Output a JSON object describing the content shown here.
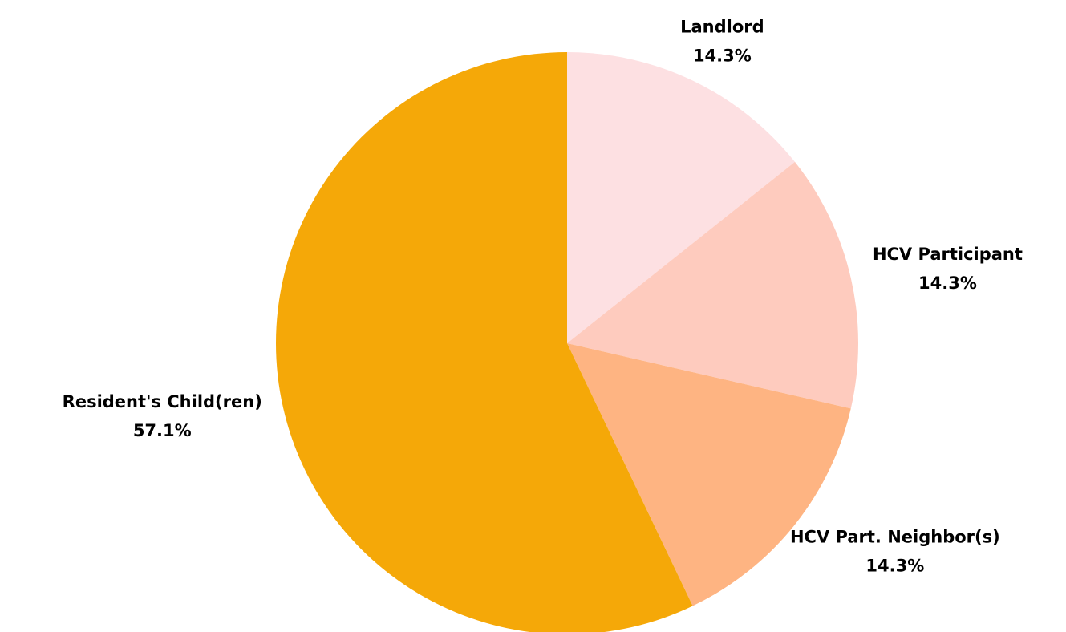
{
  "chart_data": {
    "type": "pie",
    "categories": [
      "Landlord",
      "HCV Participant",
      "HCV Part. Neighbor(s)",
      "Resident's Child(ren)"
    ],
    "values": [
      14.3,
      14.3,
      14.3,
      57.1
    ],
    "value_labels": [
      "14.3%",
      "14.3%",
      "14.3%",
      "57.1%"
    ],
    "colors": [
      "#fde0e2",
      "#fecbbe",
      "#feb482",
      "#f5a808"
    ]
  }
}
